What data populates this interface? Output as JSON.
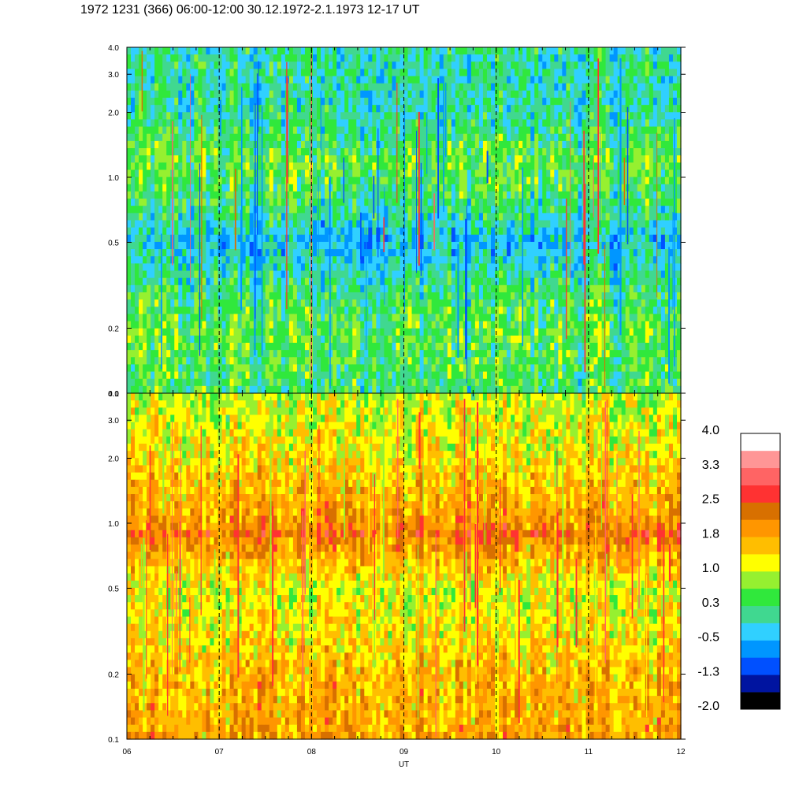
{
  "title": "1972 1231 (366) 06:00-12:00 30.12.1972-2.1.1973  12-17 UT",
  "chart_data": [
    {
      "type": "heatmap",
      "panel": "top",
      "title": "1972 1231 (366) 06:00-12:00 30.12.1972-2.1.1973  12-17 UT",
      "xlabel": "UT",
      "ylabel": "",
      "x_ticks": [
        "06",
        "07",
        "08",
        "09",
        "10",
        "11",
        "12"
      ],
      "xlim": [
        6,
        12
      ],
      "y_scale": "log",
      "y_ticks": [
        {
          "value": 0.1,
          "label": "0.1"
        },
        {
          "value": 0.2,
          "label": "0.2"
        },
        {
          "value": 0.5,
          "label": "0.5"
        },
        {
          "value": 1.0,
          "label": "1.0"
        },
        {
          "value": 2.0,
          "label": "2.0"
        },
        {
          "value": 3.0,
          "label": "3.0"
        },
        {
          "value": 4.0,
          "label": "4.0"
        }
      ],
      "ylim": [
        0.1,
        4.0
      ],
      "hour_markers": [
        7,
        8,
        9,
        10,
        11
      ],
      "profile": [
        {
          "y": 0.1,
          "value": 0.3
        },
        {
          "y": 0.2,
          "value": 0.5
        },
        {
          "y": 0.3,
          "value": 0.2
        },
        {
          "y": 0.5,
          "value": -0.4
        },
        {
          "y": 0.8,
          "value": 0.3
        },
        {
          "y": 1.2,
          "value": 0.5
        },
        {
          "y": 2.0,
          "value": 0.0
        },
        {
          "y": 4.0,
          "value": 0.0
        }
      ],
      "description_of_values": "mostly green/cyan, values around -0.5 to 1.0"
    },
    {
      "type": "heatmap",
      "panel": "bottom",
      "xlabel": "UT",
      "ylabel": "",
      "x_ticks": [
        "06",
        "07",
        "08",
        "09",
        "10",
        "11",
        "12"
      ],
      "xlim": [
        6,
        12
      ],
      "y_scale": "log",
      "y_ticks": [
        {
          "value": 0.1,
          "label": "0.1"
        },
        {
          "value": 0.2,
          "label": "0.2"
        },
        {
          "value": 0.5,
          "label": "0.5"
        },
        {
          "value": 1.0,
          "label": "1.0"
        },
        {
          "value": 2.0,
          "label": "2.0"
        },
        {
          "value": 3.0,
          "label": "3.0"
        },
        {
          "value": 4.0,
          "label": "4.0"
        }
      ],
      "ylim": [
        0.1,
        4.0
      ],
      "hour_markers": [
        7,
        8,
        9,
        10,
        11
      ],
      "profile": [
        {
          "y": 0.1,
          "value": 1.8
        },
        {
          "y": 0.2,
          "value": 1.6
        },
        {
          "y": 0.35,
          "value": 1.2
        },
        {
          "y": 0.5,
          "value": 1.1
        },
        {
          "y": 0.8,
          "value": 1.9
        },
        {
          "y": 0.9,
          "value": 2.3
        },
        {
          "y": 1.0,
          "value": 1.9
        },
        {
          "y": 2.0,
          "value": 1.3
        },
        {
          "y": 4.0,
          "value": 0.9
        }
      ],
      "description_of_values": "mostly orange/yellow, values around 1.0 to 2.5, band near 0.85"
    }
  ],
  "colorbar": {
    "labels": [
      "4.0",
      "3.3",
      "2.5",
      "1.8",
      "1.0",
      "0.3",
      "-0.5",
      "-1.3",
      "-2.0"
    ],
    "colors": [
      "#000000",
      "#0014a0",
      "#0050ff",
      "#0096ff",
      "#30d0ff",
      "#40d890",
      "#30e83c",
      "#96f030",
      "#ffff00",
      "#ffbe00",
      "#ff9600",
      "#d87000",
      "#ff3232",
      "#ff6464",
      "#ff9696",
      "#ffffff"
    ],
    "min": -2.0,
    "max": 4.0
  },
  "xaxis_label": "UT"
}
